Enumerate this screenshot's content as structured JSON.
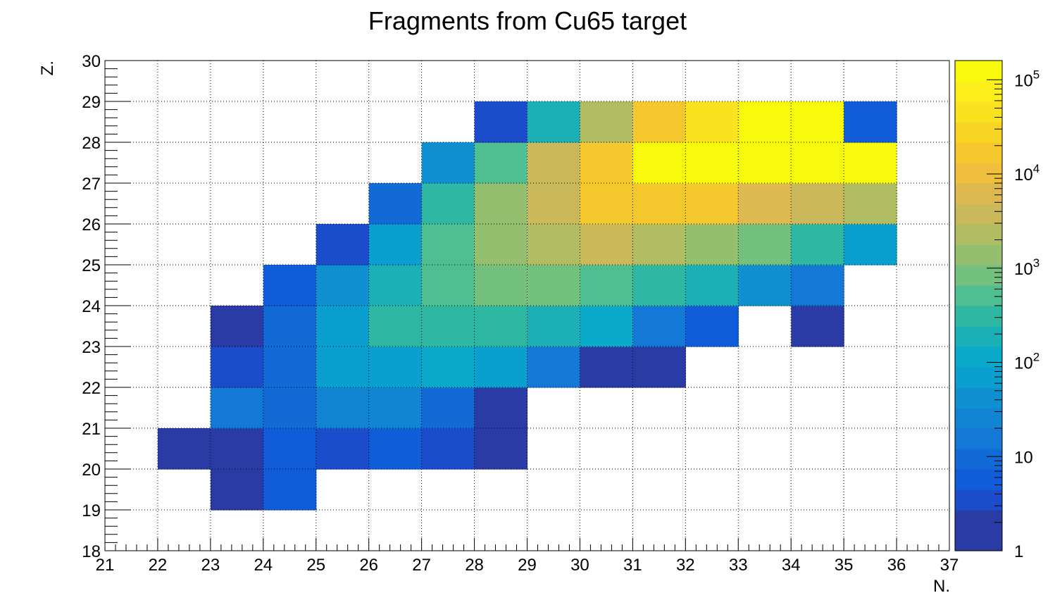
{
  "chart_data": {
    "type": "heatmap",
    "title": "Fragments from Cu65 target",
    "xlabel": "N.",
    "ylabel": "Z.",
    "xlim": [
      21,
      37
    ],
    "ylim": [
      18,
      30
    ],
    "x_ticks": [
      "21",
      "22",
      "23",
      "24",
      "25",
      "26",
      "27",
      "28",
      "29",
      "30",
      "31",
      "32",
      "33",
      "34",
      "35",
      "36",
      "37"
    ],
    "y_ticks": [
      "18",
      "19",
      "20",
      "21",
      "22",
      "23",
      "24",
      "25",
      "26",
      "27",
      "28",
      "29",
      "30"
    ],
    "z_scale": "log",
    "zlim": [
      1,
      160000
    ],
    "z_ticks": [
      {
        "value": 1,
        "base": "1",
        "exp": ""
      },
      {
        "value": 10,
        "base": "10",
        "exp": ""
      },
      {
        "value": 100,
        "base": "10",
        "exp": "2"
      },
      {
        "value": 1000,
        "base": "10",
        "exp": "3"
      },
      {
        "value": 10000,
        "base": "10",
        "exp": "4"
      },
      {
        "value": 100000,
        "base": "10",
        "exp": "5"
      }
    ],
    "grid": true,
    "palette": [
      "#2a3ba6",
      "#2a3ba6",
      "#1a4ccc",
      "#115cd9",
      "#116ad6",
      "#1478d6",
      "#1284d4",
      "#0f91d1",
      "#0a9fcf",
      "#0aa8c9",
      "#1ab0b6",
      "#2eb8a4",
      "#4fbe91",
      "#73c07f",
      "#94bf6f",
      "#b1bd63",
      "#cab95b",
      "#ddb950",
      "#f0bf3d",
      "#f5c82e",
      "#f8d424",
      "#fbe21f",
      "#fbee1a",
      "#f8fa0c"
    ],
    "cells": [
      {
        "n": 23,
        "z": 19,
        "v": 1
      },
      {
        "n": 24,
        "z": 19,
        "v": 5
      },
      {
        "n": 22,
        "z": 20,
        "v": 1
      },
      {
        "n": 23,
        "z": 20,
        "v": 1
      },
      {
        "n": 24,
        "z": 20,
        "v": 5
      },
      {
        "n": 25,
        "z": 20,
        "v": 3
      },
      {
        "n": 26,
        "z": 20,
        "v": 6
      },
      {
        "n": 27,
        "z": 20,
        "v": 3
      },
      {
        "n": 28,
        "z": 20,
        "v": 1
      },
      {
        "n": 23,
        "z": 21,
        "v": 15
      },
      {
        "n": 24,
        "z": 21,
        "v": 10
      },
      {
        "n": 25,
        "z": 21,
        "v": 20
      },
      {
        "n": 26,
        "z": 21,
        "v": 20
      },
      {
        "n": 27,
        "z": 21,
        "v": 8
      },
      {
        "n": 28,
        "z": 21,
        "v": 1
      },
      {
        "n": 23,
        "z": 22,
        "v": 3
      },
      {
        "n": 24,
        "z": 22,
        "v": 10
      },
      {
        "n": 25,
        "z": 22,
        "v": 70
      },
      {
        "n": 26,
        "z": 22,
        "v": 70
      },
      {
        "n": 27,
        "z": 22,
        "v": 90
      },
      {
        "n": 28,
        "z": 22,
        "v": 60
      },
      {
        "n": 29,
        "z": 22,
        "v": 15
      },
      {
        "n": 30,
        "z": 22,
        "v": 1
      },
      {
        "n": 31,
        "z": 22,
        "v": 1
      },
      {
        "n": 23,
        "z": 23,
        "v": 1
      },
      {
        "n": 24,
        "z": 23,
        "v": 10
      },
      {
        "n": 25,
        "z": 23,
        "v": 70
      },
      {
        "n": 26,
        "z": 23,
        "v": 250
      },
      {
        "n": 27,
        "z": 23,
        "v": 250
      },
      {
        "n": 28,
        "z": 23,
        "v": 250
      },
      {
        "n": 29,
        "z": 23,
        "v": 150
      },
      {
        "n": 30,
        "z": 23,
        "v": 90
      },
      {
        "n": 31,
        "z": 23,
        "v": 15
      },
      {
        "n": 32,
        "z": 23,
        "v": 5
      },
      {
        "n": 34,
        "z": 23,
        "v": 1
      },
      {
        "n": 24,
        "z": 24,
        "v": 5
      },
      {
        "n": 25,
        "z": 24,
        "v": 40
      },
      {
        "n": 26,
        "z": 24,
        "v": 150
      },
      {
        "n": 27,
        "z": 24,
        "v": 500
      },
      {
        "n": 28,
        "z": 24,
        "v": 800
      },
      {
        "n": 29,
        "z": 24,
        "v": 700
      },
      {
        "n": 30,
        "z": 24,
        "v": 450
      },
      {
        "n": 31,
        "z": 24,
        "v": 250
      },
      {
        "n": 32,
        "z": 24,
        "v": 150
      },
      {
        "n": 33,
        "z": 24,
        "v": 35
      },
      {
        "n": 34,
        "z": 24,
        "v": 15
      },
      {
        "n": 25,
        "z": 25,
        "v": 3
      },
      {
        "n": 26,
        "z": 25,
        "v": 60
      },
      {
        "n": 27,
        "z": 25,
        "v": 500
      },
      {
        "n": 28,
        "z": 25,
        "v": 1300
      },
      {
        "n": 29,
        "z": 25,
        "v": 2500
      },
      {
        "n": 30,
        "z": 25,
        "v": 4500
      },
      {
        "n": 31,
        "z": 25,
        "v": 2500
      },
      {
        "n": 32,
        "z": 25,
        "v": 1300
      },
      {
        "n": 33,
        "z": 25,
        "v": 700
      },
      {
        "n": 34,
        "z": 25,
        "v": 250
      },
      {
        "n": 35,
        "z": 25,
        "v": 60
      },
      {
        "n": 26,
        "z": 26,
        "v": 8
      },
      {
        "n": 27,
        "z": 26,
        "v": 250
      },
      {
        "n": 28,
        "z": 26,
        "v": 1300
      },
      {
        "n": 29,
        "z": 26,
        "v": 4500
      },
      {
        "n": 30,
        "z": 26,
        "v": 14000
      },
      {
        "n": 31,
        "z": 26,
        "v": 14000
      },
      {
        "n": 32,
        "z": 26,
        "v": 14000
      },
      {
        "n": 33,
        "z": 26,
        "v": 7000
      },
      {
        "n": 34,
        "z": 26,
        "v": 4500
      },
      {
        "n": 35,
        "z": 26,
        "v": 2500
      },
      {
        "n": 27,
        "z": 27,
        "v": 35
      },
      {
        "n": 28,
        "z": 27,
        "v": 450
      },
      {
        "n": 29,
        "z": 27,
        "v": 4500
      },
      {
        "n": 30,
        "z": 27,
        "v": 14000
      },
      {
        "n": 31,
        "z": 27,
        "v": 110000
      },
      {
        "n": 32,
        "z": 27,
        "v": 110000
      },
      {
        "n": 33,
        "z": 27,
        "v": 110000
      },
      {
        "n": 34,
        "z": 27,
        "v": 110000
      },
      {
        "n": 35,
        "z": 27,
        "v": 110000
      },
      {
        "n": 28,
        "z": 28,
        "v": 3
      },
      {
        "n": 29,
        "z": 28,
        "v": 150
      },
      {
        "n": 30,
        "z": 28,
        "v": 2500
      },
      {
        "n": 31,
        "z": 28,
        "v": 20000
      },
      {
        "n": 32,
        "z": 28,
        "v": 45000
      },
      {
        "n": 33,
        "z": 28,
        "v": 110000
      },
      {
        "n": 34,
        "z": 28,
        "v": 110000
      },
      {
        "n": 35,
        "z": 28,
        "v": 6
      }
    ]
  }
}
